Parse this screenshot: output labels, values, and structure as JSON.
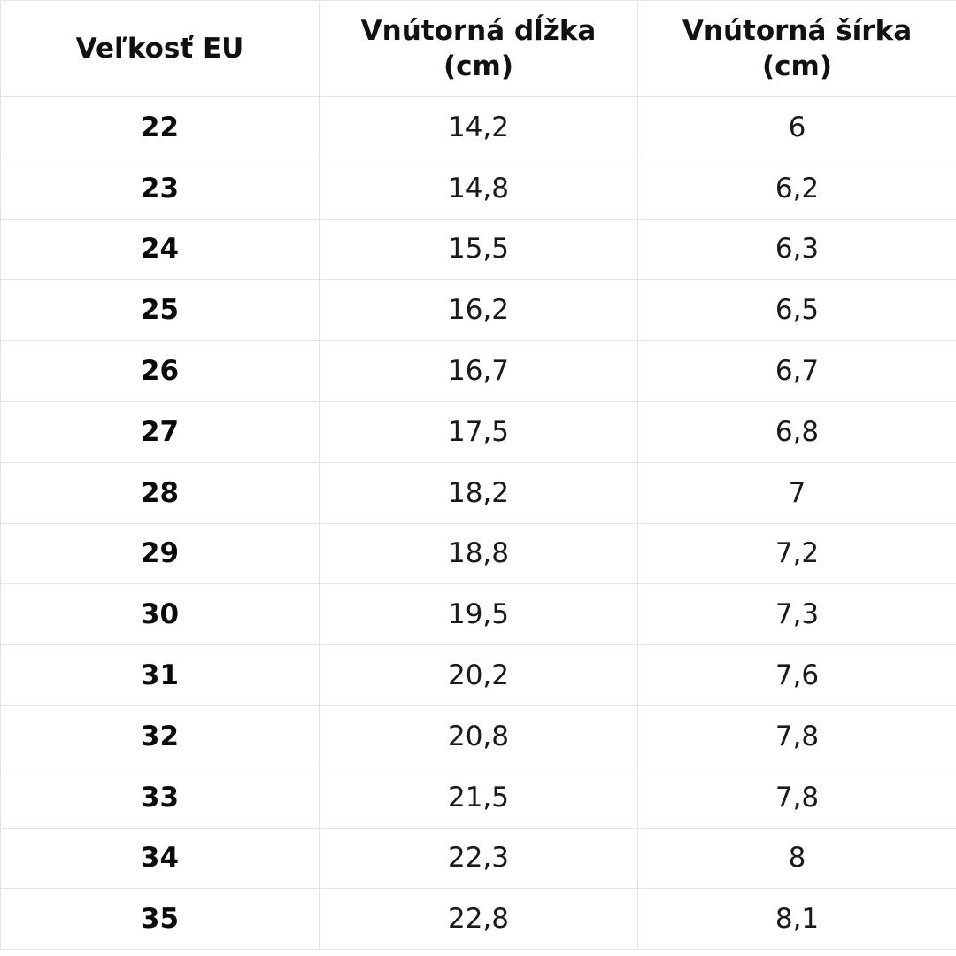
{
  "table": {
    "headers": [
      {
        "line1": "Veľkosť EU",
        "line2": ""
      },
      {
        "line1": "Vnútorná dĺžka",
        "line2": "(cm)"
      },
      {
        "line1": "Vnútorná šírka",
        "line2": "(cm)"
      }
    ],
    "rows": [
      {
        "size": "22",
        "length": "14,2",
        "width": "6"
      },
      {
        "size": "23",
        "length": "14,8",
        "width": "6,2"
      },
      {
        "size": "24",
        "length": "15,5",
        "width": "6,3"
      },
      {
        "size": "25",
        "length": "16,2",
        "width": "6,5"
      },
      {
        "size": "26",
        "length": "16,7",
        "width": "6,7"
      },
      {
        "size": "27",
        "length": "17,5",
        "width": "6,8"
      },
      {
        "size": "28",
        "length": "18,2",
        "width": "7"
      },
      {
        "size": "29",
        "length": "18,8",
        "width": "7,2"
      },
      {
        "size": "30",
        "length": "19,5",
        "width": "7,3"
      },
      {
        "size": "31",
        "length": "20,2",
        "width": "7,6"
      },
      {
        "size": "32",
        "length": "20,8",
        "width": "7,8"
      },
      {
        "size": "33",
        "length": "21,5",
        "width": "7,8"
      },
      {
        "size": "34",
        "length": "22,3",
        "width": "8"
      },
      {
        "size": "35",
        "length": "22,8",
        "width": "8,1"
      }
    ]
  },
  "colors": {
    "border": "#e4e4e4",
    "text": "#111111",
    "background": "#ffffff"
  }
}
